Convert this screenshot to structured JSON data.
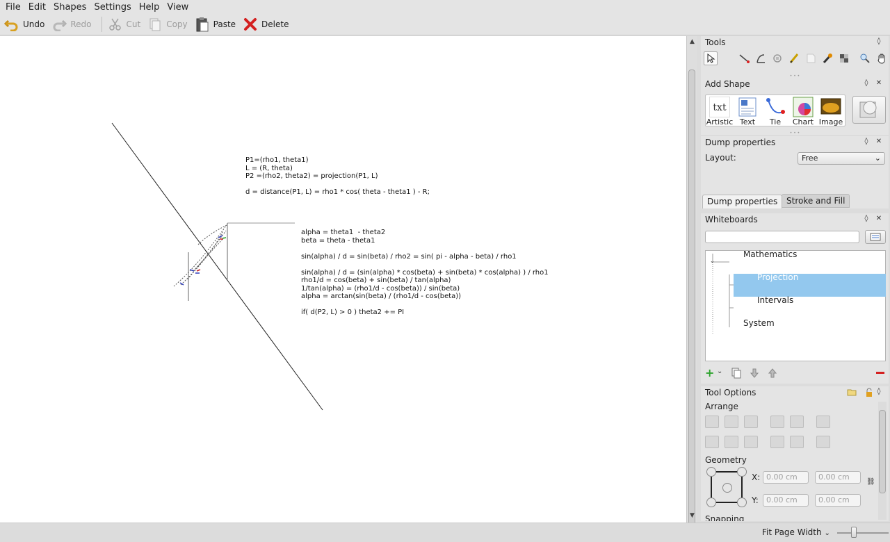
{
  "menu": [
    "File",
    "Edit",
    "Shapes",
    "Settings",
    "Help",
    "View"
  ],
  "toolbar": {
    "undo": "Undo",
    "redo": "Redo",
    "cut": "Cut",
    "copy": "Copy",
    "paste": "Paste",
    "delete": "Delete"
  },
  "canvas": {
    "block1": "P1=(rho1, theta1)\nL = (R, theta)\nP2 =(rho2, theta2) = projection(P1, L)\n\nd = distance(P1, L) = rho1 * cos( theta - theta1 ) - R;",
    "block2": "alpha = theta1  - theta2\nbeta = theta - theta1\n\nsin(alpha) / d = sin(beta) / rho2 = sin( pi - alpha - beta) / rho1\n\nsin(alpha) / d = (sin(alpha) * cos(beta) + sin(beta) * cos(alpha) ) / rho1\nrho1/d = cos(beta) + sin(beta) / tan(alpha)\n1/tan(alpha) = (rho1/d - cos(beta)) / sin(beta)\nalpha = arctan(sin(beta) / (rho1/d - cos(beta))\n\nif( d(P2, L) > 0 ) theta2 += PI"
  },
  "tools_panel": {
    "title": "Tools",
    "icons": [
      "select-icon",
      "line-icon",
      "curve-icon",
      "connector-icon",
      "pen-icon",
      "note-icon",
      "calligraphy-icon",
      "pattern-icon",
      "zoom-icon",
      "pan-icon"
    ]
  },
  "add_shape_panel": {
    "title": "Add Shape",
    "items": [
      "Artistic",
      "Text",
      "Tie",
      "Chart",
      "Image"
    ]
  },
  "dump_properties_panel": {
    "title": "Dump properties",
    "layout_label": "Layout:",
    "layout_value": "Free",
    "tabs": [
      "Dump properties",
      "Stroke and Fill"
    ]
  },
  "whiteboards_panel": {
    "title": "Whiteboards",
    "search_value": "",
    "tree": [
      {
        "label": "Mathematics",
        "level": 0,
        "selected": false
      },
      {
        "label": "Projection",
        "level": 1,
        "selected": true
      },
      {
        "label": "Intervals",
        "level": 1,
        "selected": false
      },
      {
        "label": "System",
        "level": 0,
        "selected": false
      }
    ]
  },
  "tool_options_panel": {
    "title": "Tool Options",
    "arrange_label": "Arrange",
    "geometry_label": "Geometry",
    "x_label": "X:",
    "y_label": "Y:",
    "x_value": "0.00 cm",
    "x_width": "0.00 cm",
    "y_value": "0.00 cm",
    "y_height": "0.00 cm",
    "snapping_label": "Snapping"
  },
  "statusbar": {
    "zoom": "Fit Page Width"
  },
  "colors": {
    "selection": "#93c8ee",
    "delete_red": "#d42020",
    "add_green": "#2ea32e"
  }
}
